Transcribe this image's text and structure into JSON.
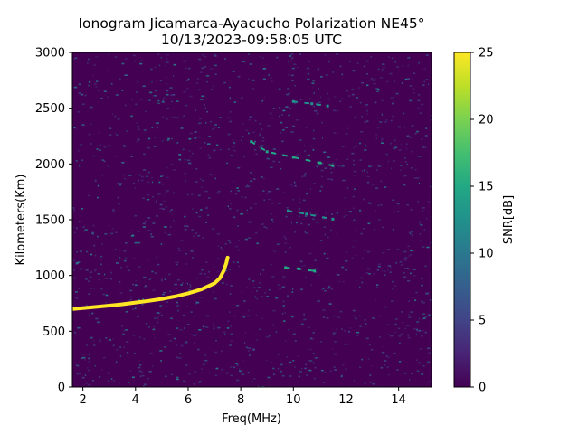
{
  "chart_data": {
    "type": "heatmap",
    "title": "Ionogram Jicamarca-Ayacucho Polarization NE45°",
    "subtitle": "10/13/2023-09:58:05 UTC",
    "xlabel": "Freq(MHz)",
    "ylabel": "Kilometers(Km)",
    "colorbar_label": "SNR[dB]",
    "colormap": "viridis",
    "xlim": [
      1.6,
      15.25
    ],
    "ylim": [
      0,
      3000
    ],
    "clim": [
      0,
      25
    ],
    "x_ticks": [
      2,
      4,
      6,
      8,
      10,
      12,
      14
    ],
    "y_ticks": [
      0,
      500,
      1000,
      1500,
      2000,
      2500,
      3000
    ],
    "colorbar_ticks": [
      0,
      5,
      10,
      15,
      20,
      25
    ],
    "grid": false,
    "series": [
      {
        "trace": "primary-echo",
        "points": [
          [
            1.6,
            700
          ],
          [
            2,
            708
          ],
          [
            2.5,
            718
          ],
          [
            3,
            730
          ],
          [
            3.5,
            742
          ],
          [
            4,
            757
          ],
          [
            4.5,
            772
          ],
          [
            5,
            790
          ],
          [
            5.5,
            812
          ],
          [
            6,
            840
          ],
          [
            6.5,
            875
          ],
          [
            7,
            930
          ],
          [
            7.2,
            975
          ],
          [
            7.35,
            1040
          ],
          [
            7.45,
            1110
          ],
          [
            7.5,
            1160
          ]
        ],
        "snr_db": 25
      },
      {
        "trace": "second-echo",
        "points": [
          [
            8.4,
            2200
          ],
          [
            9,
            2110
          ],
          [
            10,
            2060
          ],
          [
            11,
            2010
          ],
          [
            11.5,
            1985
          ]
        ],
        "snr_db": 15
      },
      {
        "trace": "echo-1500km",
        "points": [
          [
            9.8,
            1580
          ],
          [
            10.5,
            1550
          ],
          [
            11.5,
            1505
          ]
        ],
        "snr_db": 12
      },
      {
        "trace": "echo-2550km",
        "points": [
          [
            10,
            2560
          ],
          [
            10.7,
            2540
          ],
          [
            11.3,
            2520
          ]
        ],
        "snr_db": 12
      },
      {
        "trace": "echo-1060km",
        "points": [
          [
            9.7,
            1070
          ],
          [
            10.2,
            1060
          ],
          [
            10.8,
            1040
          ]
        ],
        "snr_db": 14
      }
    ]
  }
}
